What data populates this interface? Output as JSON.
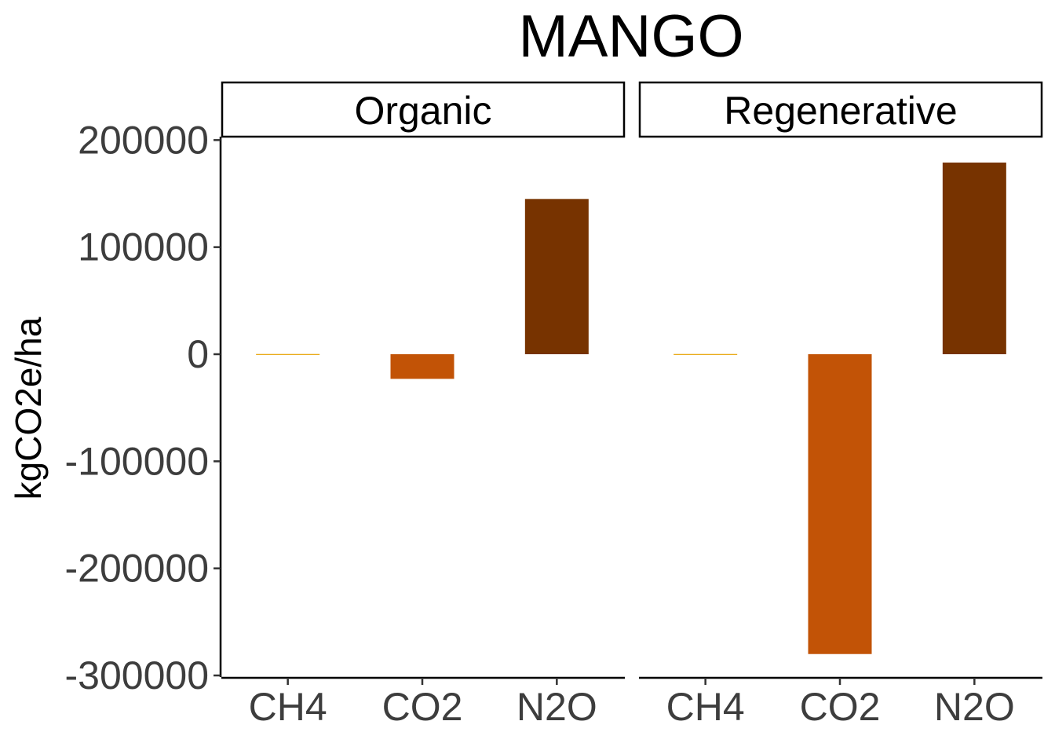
{
  "chart_data": {
    "type": "bar",
    "title": "MANGO",
    "ylabel": "kgCO2e/ha",
    "xlabel": "",
    "ylim": [
      -300000,
      200000
    ],
    "yticks": [
      -300000,
      -200000,
      -100000,
      0,
      100000,
      200000
    ],
    "yticks_labels": [
      "-300000",
      "-200000",
      "-100000",
      "0",
      "100000",
      "200000"
    ],
    "categories": [
      "CH4",
      "CO2",
      "N2O"
    ],
    "colors": {
      "CH4": "#e8a60a",
      "CO2": "#c25306",
      "N2O": "#773300"
    },
    "panels": [
      {
        "name": "Organic",
        "values": [
          200,
          -23000,
          145000
        ]
      },
      {
        "name": "Regenerative",
        "values": [
          200,
          -280000,
          179000
        ]
      }
    ],
    "grid": false,
    "legend": "none"
  }
}
